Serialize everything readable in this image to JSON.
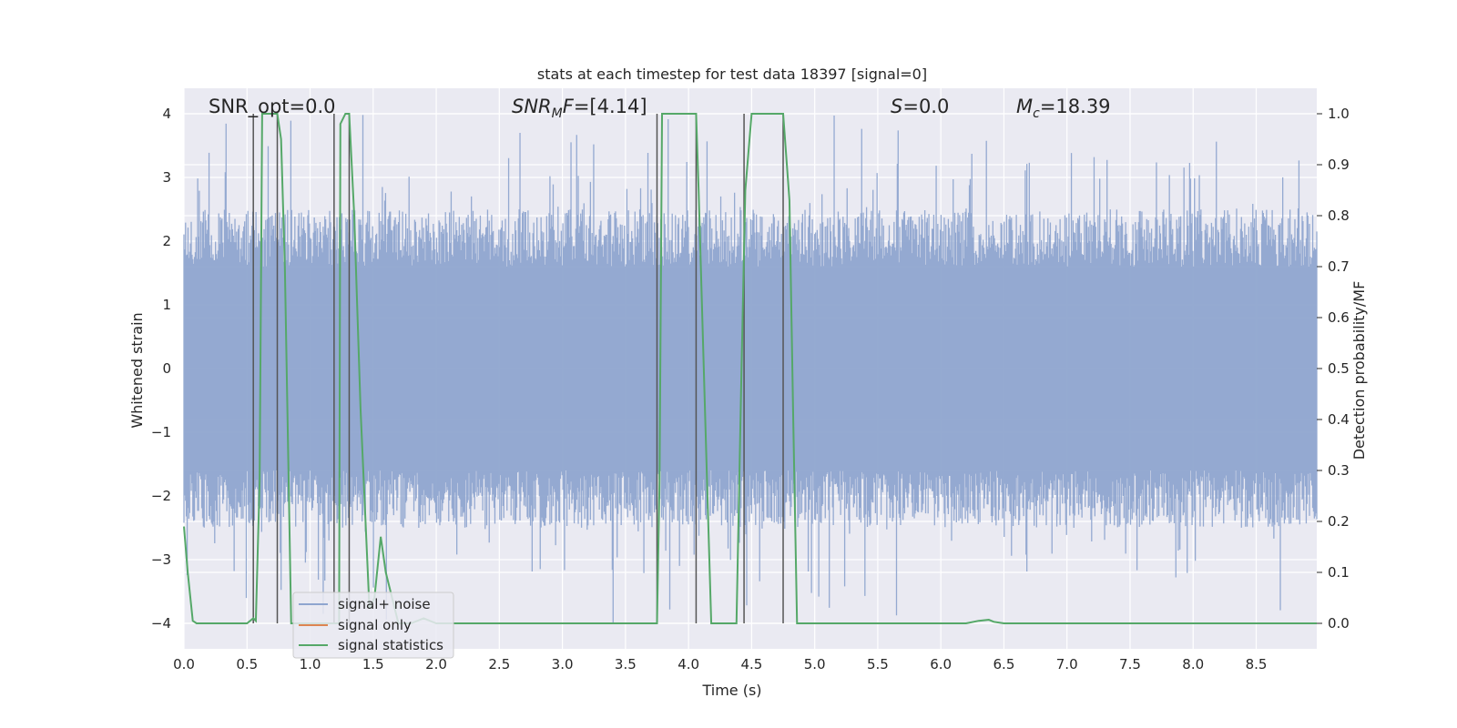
{
  "chart_data": {
    "type": "line",
    "title": "stats at each timestep for test data 18397 [signal=0]",
    "xlabel": "Time (s)",
    "ylabel_left": "Whitened strain",
    "ylabel_right": "Detection probability/MF",
    "xlim": [
      0.0,
      8.98
    ],
    "ylim_left": [
      -4.4,
      4.4
    ],
    "ylim_right": [
      -0.05,
      1.05
    ],
    "x_ticks": [
      "0.0",
      "0.5",
      "1.0",
      "1.5",
      "2.0",
      "2.5",
      "3.0",
      "3.5",
      "4.0",
      "4.5",
      "5.0",
      "5.5",
      "6.0",
      "6.5",
      "7.0",
      "7.5",
      "8.0",
      "8.5"
    ],
    "y_ticks_left": [
      "−4",
      "−3",
      "−2",
      "−1",
      "0",
      "1",
      "2",
      "3",
      "4"
    ],
    "y_ticks_right": [
      "0.0",
      "0.1",
      "0.2",
      "0.3",
      "0.4",
      "0.5",
      "0.6",
      "0.7",
      "0.8",
      "0.9",
      "1.0"
    ],
    "grid": true,
    "annotations": {
      "snr_opt": "SNR_opt=0.0",
      "snr_mf": "=[4.14]",
      "s_stat": "=0.0",
      "mc": "=18.39"
    },
    "colors": {
      "background": "#eaeaf2",
      "noise": "#8fa5cf",
      "signal_only": "#dd8452",
      "statistics": "#55a868",
      "vlines": "#555555"
    },
    "legend": {
      "placement": "lower-left",
      "entries": [
        "signal+ noise",
        "signal only",
        "signal statistics"
      ]
    },
    "series": [
      {
        "name": "signal+ noise",
        "axis": "left",
        "note_samples": "dense noise, envelope approx ±2..±4"
      },
      {
        "name": "signal only",
        "axis": "left",
        "values": []
      },
      {
        "name": "signal statistics",
        "axis": "right",
        "x": [
          0.0,
          0.03,
          0.07,
          0.1,
          0.15,
          0.3,
          0.5,
          0.55,
          0.57,
          0.6,
          0.62,
          0.64,
          0.66,
          0.7,
          0.74,
          0.77,
          0.8,
          0.85,
          1.0,
          1.15,
          1.19,
          1.23,
          1.24,
          1.28,
          1.31,
          1.35,
          1.4,
          1.47,
          1.51,
          1.56,
          1.6,
          1.7,
          1.8,
          1.9,
          2.0,
          2.1,
          2.5,
          3.0,
          3.5,
          3.75,
          3.77,
          3.79,
          3.82,
          3.9,
          4.0,
          4.06,
          4.08,
          4.15,
          4.18,
          4.3,
          4.38,
          4.42,
          4.45,
          4.5,
          4.6,
          4.7,
          4.75,
          4.8,
          4.83,
          4.86,
          4.9,
          5.0,
          6.2,
          6.3,
          6.38,
          6.42,
          6.5,
          7.0,
          8.0,
          8.98
        ],
        "y": [
          0.19,
          0.1,
          0.005,
          0.0,
          0.0,
          0.0,
          0.0,
          0.01,
          0.005,
          0.28,
          1.0,
          1.0,
          1.0,
          1.0,
          1.0,
          0.95,
          0.7,
          0.0,
          0.0,
          0.0,
          0.0,
          0.0,
          0.98,
          1.0,
          1.0,
          0.8,
          0.42,
          0.03,
          0.05,
          0.17,
          0.1,
          0.0,
          0.0,
          0.01,
          0.0,
          0.0,
          0.0,
          0.0,
          0.0,
          0.0,
          0.28,
          1.0,
          1.0,
          1.0,
          1.0,
          1.0,
          0.85,
          0.25,
          0.0,
          0.0,
          0.0,
          0.5,
          0.85,
          1.0,
          1.0,
          1.0,
          1.0,
          0.83,
          0.4,
          0.0,
          0.0,
          0.0,
          0.0,
          0.005,
          0.007,
          0.003,
          0.0,
          0.0,
          0.0,
          0.0
        ]
      },
      {
        "name": "",
        "type": "vertical-lines",
        "axis": "right",
        "x": [
          0.55,
          0.74,
          1.19,
          1.31,
          3.75,
          4.06,
          4.44,
          4.75
        ],
        "y_top": [
          1.0,
          1.0,
          1.0,
          1.0,
          1.0,
          1.0,
          1.0,
          1.0
        ]
      }
    ]
  }
}
